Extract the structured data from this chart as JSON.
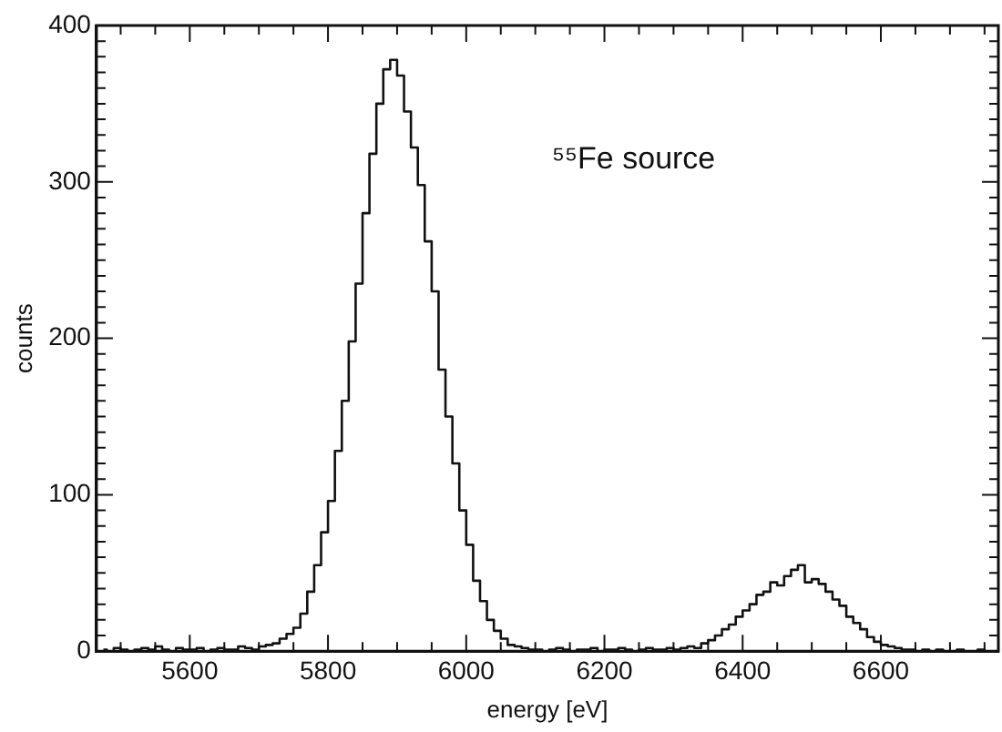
{
  "chart_data": {
    "type": "step",
    "xlabel": "energy [eV]",
    "ylabel": "counts",
    "annotations": [
      "⁵⁵Fe source"
    ],
    "color": "#111111",
    "x": [
      5475,
      5485,
      5495,
      5505,
      5515,
      5525,
      5535,
      5545,
      5555,
      5565,
      5575,
      5585,
      5595,
      5605,
      5615,
      5625,
      5635,
      5645,
      5655,
      5665,
      5675,
      5685,
      5695,
      5705,
      5715,
      5725,
      5735,
      5745,
      5755,
      5765,
      5775,
      5785,
      5795,
      5805,
      5815,
      5825,
      5835,
      5845,
      5855,
      5865,
      5875,
      5885,
      5895,
      5905,
      5915,
      5925,
      5935,
      5945,
      5955,
      5965,
      5975,
      5985,
      5995,
      6005,
      6015,
      6025,
      6035,
      6045,
      6055,
      6065,
      6075,
      6085,
      6095,
      6105,
      6115,
      6125,
      6135,
      6145,
      6155,
      6165,
      6175,
      6185,
      6195,
      6205,
      6215,
      6225,
      6235,
      6245,
      6255,
      6265,
      6275,
      6285,
      6295,
      6305,
      6315,
      6325,
      6335,
      6345,
      6355,
      6365,
      6375,
      6385,
      6395,
      6405,
      6415,
      6425,
      6435,
      6445,
      6455,
      6465,
      6475,
      6485,
      6495,
      6505,
      6515,
      6525,
      6535,
      6545,
      6555,
      6565,
      6575,
      6585,
      6595,
      6605,
      6615,
      6625,
      6635,
      6645,
      6655,
      6665,
      6675,
      6685,
      6695,
      6705,
      6715,
      6725,
      6735,
      6745,
      6755
    ],
    "values": [
      1,
      0,
      2,
      1,
      0,
      1,
      2,
      1,
      3,
      1,
      0,
      2,
      1,
      1,
      2,
      0,
      1,
      2,
      1,
      1,
      3,
      2,
      1,
      3,
      4,
      5,
      8,
      11,
      15,
      24,
      38,
      55,
      76,
      96,
      128,
      160,
      198,
      235,
      280,
      318,
      350,
      372,
      378,
      368,
      345,
      322,
      298,
      262,
      230,
      180,
      150,
      120,
      90,
      68,
      45,
      32,
      20,
      13,
      8,
      4,
      3,
      2,
      1,
      1,
      0,
      1,
      2,
      1,
      0,
      1,
      1,
      2,
      0,
      1,
      1,
      2,
      1,
      0,
      1,
      2,
      1,
      1,
      2,
      1,
      2,
      3,
      2,
      5,
      7,
      10,
      14,
      17,
      22,
      26,
      30,
      36,
      38,
      44,
      42,
      48,
      52,
      55,
      44,
      46,
      43,
      38,
      33,
      29,
      22,
      18,
      14,
      9,
      6,
      4,
      3,
      2,
      1,
      1,
      0,
      1,
      0,
      1,
      0,
      0,
      1,
      0,
      0,
      1,
      0
    ],
    "xlim": [
      5465,
      6770
    ],
    "ylim": [
      0,
      400
    ],
    "xticks": [
      {
        "value": 5500,
        "label": null
      },
      {
        "value": 5550,
        "label": null
      },
      5600,
      {
        "value": 5650,
        "label": null
      },
      {
        "value": 5700,
        "label": null
      },
      {
        "value": 5750,
        "label": null
      },
      5800,
      {
        "value": 5850,
        "label": null
      },
      {
        "value": 5900,
        "label": null
      },
      {
        "value": 5950,
        "label": null
      },
      6000,
      {
        "value": 6050,
        "label": null
      },
      {
        "value": 6100,
        "label": null
      },
      {
        "value": 6150,
        "label": null
      },
      6200,
      {
        "value": 6250,
        "label": null
      },
      {
        "value": 6300,
        "label": null
      },
      {
        "value": 6350,
        "label": null
      },
      6400,
      {
        "value": 6450,
        "label": null
      },
      {
        "value": 6500,
        "label": null
      },
      {
        "value": 6550,
        "label": null
      },
      6600,
      {
        "value": 6650,
        "label": null
      },
      {
        "value": 6700,
        "label": null
      },
      {
        "value": 6750,
        "label": null
      }
    ],
    "yticks": [
      0,
      {
        "value": 10,
        "label": null
      },
      {
        "value": 20,
        "label": null
      },
      {
        "value": 30,
        "label": null
      },
      {
        "value": 40,
        "label": null
      },
      {
        "value": 50,
        "label": null
      },
      {
        "value": 60,
        "label": null
      },
      {
        "value": 70,
        "label": null
      },
      {
        "value": 80,
        "label": null
      },
      {
        "value": 90,
        "label": null
      },
      100,
      {
        "value": 110,
        "label": null
      },
      {
        "value": 120,
        "label": null
      },
      {
        "value": 130,
        "label": null
      },
      {
        "value": 140,
        "label": null
      },
      {
        "value": 150,
        "label": null
      },
      {
        "value": 160,
        "label": null
      },
      {
        "value": 170,
        "label": null
      },
      {
        "value": 180,
        "label": null
      },
      {
        "value": 190,
        "label": null
      },
      200,
      {
        "value": 210,
        "label": null
      },
      {
        "value": 220,
        "label": null
      },
      {
        "value": 230,
        "label": null
      },
      {
        "value": 240,
        "label": null
      },
      {
        "value": 250,
        "label": null
      },
      {
        "value": 260,
        "label": null
      },
      {
        "value": 270,
        "label": null
      },
      {
        "value": 280,
        "label": null
      },
      {
        "value": 290,
        "label": null
      },
      300,
      {
        "value": 310,
        "label": null
      },
      {
        "value": 320,
        "label": null
      },
      {
        "value": 330,
        "label": null
      },
      {
        "value": 340,
        "label": null
      },
      {
        "value": 350,
        "label": null
      },
      {
        "value": 360,
        "label": null
      },
      {
        "value": 370,
        "label": null
      },
      {
        "value": 380,
        "label": null
      },
      {
        "value": 390,
        "label": null
      },
      400
    ]
  }
}
